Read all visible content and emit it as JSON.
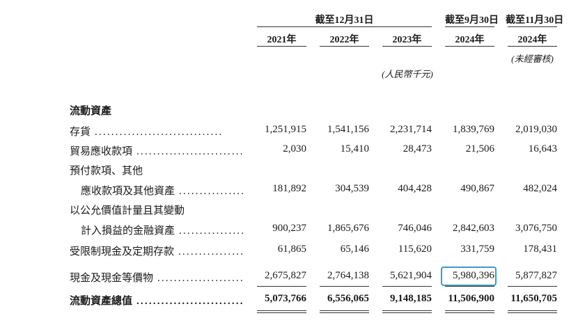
{
  "header": {
    "group_dec31": "截至12月31日",
    "group_sep30": "截至9月30日",
    "group_nov30": "截至11月30日",
    "years": [
      "2021年",
      "2022年",
      "2023年",
      "2024年",
      "2024年"
    ],
    "unaudited": "(未經審核)",
    "unit": "(人民幣千元)"
  },
  "section_title": "流動資產",
  "rows": [
    {
      "label": "存貨",
      "values": [
        "1,251,915",
        "1,541,156",
        "2,231,714",
        "1,839,769",
        "2,019,030"
      ]
    },
    {
      "label": "貿易應收款項",
      "values": [
        "2,030",
        "15,410",
        "28,473",
        "21,506",
        "16,643"
      ]
    },
    {
      "label": "預付款項、其他"
    },
    {
      "label": "應收款項及其他資產",
      "values": [
        "181,892",
        "304,539",
        "404,428",
        "490,867",
        "482,024"
      ]
    },
    {
      "label": "以公允價值計量且其變動"
    },
    {
      "label": "計入損益的金融資產",
      "values": [
        "900,237",
        "1,865,676",
        "746,046",
        "2,842,603",
        "3,076,750"
      ]
    },
    {
      "label": "受限制現金及定期存款",
      "values": [
        "61,865",
        "65,146",
        "115,620",
        "331,759",
        "178,431"
      ]
    },
    {
      "label": "現金及現金等價物",
      "values": [
        "2,675,827",
        "2,764,138",
        "5,621,904",
        "5,980,396",
        "5,877,827"
      ]
    },
    {
      "label": "流動資產總值",
      "values": [
        "5,073,766",
        "6,556,065",
        "9,148,185",
        "11,506,900",
        "11,650,705"
      ]
    }
  ],
  "dots": "...............................",
  "highlight_color": "#1ea6de"
}
